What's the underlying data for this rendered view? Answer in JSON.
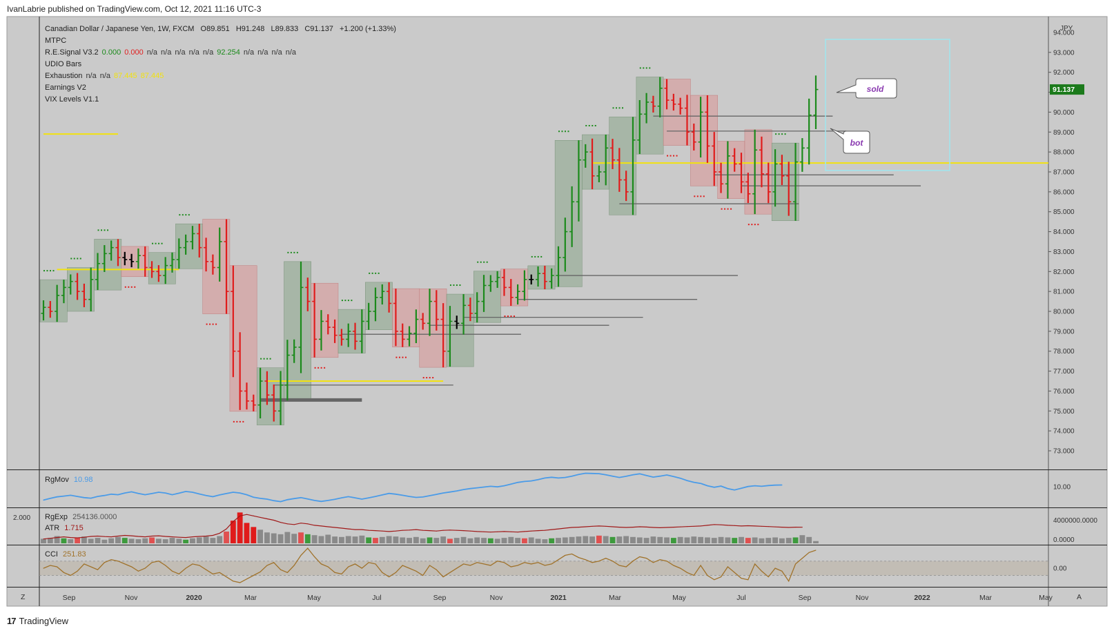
{
  "header": {
    "published": "IvanLabrie published on TradingView.com, Oct 12, 2021 11:16 UTC-3"
  },
  "footer": {
    "brand": "TradingView",
    "logo_glyph": "17"
  },
  "legend": {
    "symbol": "Canadian Dollar / Japanese Yen, 1W, FXCM",
    "ohlc": [
      {
        "label": "O",
        "value": "89.851"
      },
      {
        "label": "H",
        "value": "91.248"
      },
      {
        "label": "L",
        "value": "89.833"
      },
      {
        "label": "C",
        "value": "91.137"
      }
    ],
    "change": "+1.200 (+1.33%)",
    "indicators": [
      {
        "name": "MTPC",
        "values": []
      },
      {
        "name": "R.E.Signal V3.2",
        "values": [
          {
            "text": "0.000",
            "color": "#1b8a1b"
          },
          {
            "text": "0.000",
            "color": "#e02020"
          },
          {
            "text": "n/a",
            "color": "#333333"
          },
          {
            "text": "n/a",
            "color": "#333333"
          },
          {
            "text": "n/a",
            "color": "#333333"
          },
          {
            "text": "n/a",
            "color": "#333333"
          },
          {
            "text": "n/a",
            "color": "#333333"
          },
          {
            "text": "92.254",
            "color": "#1b8a1b"
          },
          {
            "text": "n/a",
            "color": "#333333"
          },
          {
            "text": "n/a",
            "color": "#333333"
          },
          {
            "text": "n/a",
            "color": "#333333"
          },
          {
            "text": "n/a",
            "color": "#333333"
          }
        ]
      },
      {
        "name": "UDIO Bars",
        "values": []
      },
      {
        "name": "Exhaustion",
        "values": [
          {
            "text": "n/a",
            "color": "#333333"
          },
          {
            "text": "n/a",
            "color": "#333333"
          },
          {
            "text": "87.445",
            "color": "#f2e20f"
          },
          {
            "text": "87.445",
            "color": "#f2e20f"
          }
        ]
      },
      {
        "name": "Earnings V2",
        "values": []
      },
      {
        "name": "VIX Levels V1.1",
        "values": []
      }
    ]
  },
  "currency": "JPY",
  "last_price": "91.137",
  "annotations": {
    "sold": "sold",
    "bot": "bot"
  },
  "axis_buttons": {
    "left": "Z",
    "right": "A"
  },
  "pane_labels": {
    "rgmov": {
      "name": "RgMov",
      "value": "10.98"
    },
    "rgexp": {
      "name": "RgExp",
      "value": "254136.0000"
    },
    "atr": {
      "name": "ATR",
      "value": "1.715"
    },
    "cci": {
      "name": "CCI",
      "value": "251.83"
    },
    "left_scale": "2.000"
  },
  "colors": {
    "background": "#cacaca",
    "up": "#1b8a1b",
    "down": "#e01b1b",
    "neutral": "#000000",
    "green_box": "#8fa98f",
    "red_box": "#d99a9a",
    "yellow": "#f2e20f",
    "cyan_box": "#9fe6ee",
    "rgmov_line": "#4a9be8",
    "rgexp_line": "#a01818",
    "cci_line": "#a0722a",
    "price_label_bg": "#1b7a1b"
  },
  "chart_data": [
    {
      "type": "candlestick",
      "title": "Canadian Dollar / Japanese Yen, 1W, FXCM",
      "ylabel": "JPY",
      "ylim": [
        73,
        94
      ],
      "y_ticks": [
        "94.000",
        "93.000",
        "92.000",
        "91.000",
        "90.000",
        "89.000",
        "88.000",
        "87.000",
        "86.000",
        "85.000",
        "84.000",
        "83.000",
        "82.000",
        "81.000",
        "80.000",
        "79.000",
        "78.000",
        "77.000",
        "76.000",
        "75.000",
        "74.000",
        "73.000"
      ],
      "x_ticks": [
        "Sep",
        "Nov",
        "2020",
        "Mar",
        "May",
        "Jul",
        "Sep",
        "Nov",
        "2021",
        "Mar",
        "May",
        "Jul",
        "Sep",
        "Nov",
        "2022",
        "Mar",
        "May"
      ],
      "closes": [
        80.2,
        80.0,
        80.8,
        81.2,
        81.5,
        81.0,
        80.6,
        81.6,
        82.4,
        82.9,
        83.2,
        82.7,
        82.6,
        82.5,
        82.8,
        82.2,
        82.0,
        81.8,
        82.3,
        82.6,
        83.2,
        83.5,
        83.9,
        83.2,
        82.5,
        82.2,
        83.5,
        81.0,
        78.0,
        76.0,
        75.5,
        75.3,
        76.5,
        75.8,
        75.0,
        76.3,
        77.8,
        78.2,
        81.2,
        80.5,
        78.6,
        79.5,
        79.2,
        78.8,
        78.6,
        79.0,
        78.5,
        79.5,
        80.0,
        80.7,
        81.0,
        80.4,
        79.0,
        78.6,
        78.9,
        79.6,
        79.4,
        80.5,
        79.6,
        78.0,
        79.5,
        79.4,
        80.3,
        79.9,
        80.5,
        81.3,
        81.5,
        81.7,
        81.2,
        80.7,
        81.0,
        81.6,
        81.6,
        81.9,
        81.5,
        81.8,
        82.7,
        84.0,
        85.5,
        87.6,
        88.0,
        86.8,
        87.0,
        88.2,
        87.6,
        86.6,
        86.0,
        88.6,
        89.9,
        90.5,
        90.3,
        91.2,
        90.6,
        90.4,
        90.2,
        89.0,
        88.5,
        90.0,
        88.3,
        87.0,
        86.4,
        87.8,
        87.4,
        86.5,
        85.9,
        88.1,
        86.9,
        86.0,
        87.4,
        86.8,
        85.5,
        87.5,
        88.2,
        89.85,
        91.137
      ],
      "last": 91.137,
      "levels": [
        {
          "price": 87.445,
          "from_index": 81,
          "label": "Exhaustion"
        },
        {
          "price": 86.85,
          "from_index": 99
        },
        {
          "price": 86.3,
          "from_index": 103
        },
        {
          "price": 89.8,
          "from_index": 90
        },
        {
          "price": 89.05,
          "from_index": 92
        },
        {
          "price": 85.4,
          "from_index": 85
        },
        {
          "price": 81.8,
          "from_index": 76
        },
        {
          "price": 80.6,
          "from_index": 70
        },
        {
          "price": 79.7,
          "from_index": 62
        },
        {
          "price": 79.3,
          "from_index": 57
        },
        {
          "price": 78.85,
          "from_index": 44
        },
        {
          "price": 76.3,
          "from_index": 34
        },
        {
          "price": 75.55,
          "from_index": 32
        },
        {
          "price": 82.1,
          "from_index": 2
        },
        {
          "price": 88.9,
          "from_index": 0
        },
        {
          "price": 76.5,
          "from_index": 33
        }
      ]
    },
    {
      "type": "line",
      "title": "RgMov",
      "last": 10.98,
      "y_ticks": [
        "10.00"
      ],
      "values": [
        3.1,
        4.0,
        4.8,
        5.2,
        5.6,
        5.0,
        4.4,
        4.1,
        5.0,
        5.5,
        6.2,
        5.9,
        6.8,
        7.4,
        6.6,
        5.9,
        6.5,
        7.2,
        6.8,
        5.9,
        6.7,
        7.6,
        7.2,
        6.3,
        5.5,
        4.9,
        5.8,
        6.5,
        7.2,
        6.8,
        5.9,
        4.6,
        4.0,
        3.6,
        2.8,
        2.3,
        3.3,
        3.9,
        4.4,
        3.7,
        2.9,
        2.4,
        2.9,
        3.5,
        4.3,
        4.9,
        4.3,
        3.6,
        4.3,
        5.0,
        5.8,
        6.6,
        6.2,
        5.6,
        5.0,
        4.5,
        4.7,
        5.4,
        6.1,
        6.8,
        7.3,
        7.9,
        8.6,
        9.1,
        9.5,
        9.9,
        10.3,
        10.0,
        10.6,
        11.4,
        12.3,
        12.8,
        13.1,
        13.8,
        14.6,
        15.0,
        14.6,
        14.9,
        15.6,
        16.5,
        17.1,
        17.0,
        16.9,
        16.3,
        15.6,
        14.9,
        15.5,
        16.3,
        16.8,
        15.9,
        15.1,
        15.6,
        16.2,
        15.4,
        14.5,
        13.3,
        12.4,
        11.8,
        10.6,
        9.8,
        10.4,
        9.1,
        8.4,
        9.3,
        10.2,
        10.6,
        10.3,
        10.7,
        10.9,
        10.98
      ]
    },
    {
      "type": "bar",
      "title": "RgExp / ATR",
      "rgexp_last": 254136.0,
      "atr_last": 1.715,
      "y_ticks": [
        "4000000.0000",
        "0.0000"
      ],
      "atr": [
        0.9,
        0.95,
        1.0,
        1.05,
        1.0,
        0.98,
        1.02,
        1.08,
        1.1,
        1.07,
        1.05,
        1.1,
        1.15,
        1.12,
        1.08,
        1.05,
        1.1,
        1.12,
        1.08,
        1.05,
        1.02,
        1.0,
        1.05,
        1.08,
        1.1,
        1.15,
        1.3,
        1.6,
        2.1,
        2.5,
        2.6,
        2.5,
        2.4,
        2.3,
        2.2,
        2.05,
        1.95,
        1.9,
        2.0,
        1.95,
        1.85,
        1.8,
        1.75,
        1.7,
        1.65,
        1.6,
        1.55,
        1.55,
        1.5,
        1.48,
        1.45,
        1.42,
        1.45,
        1.5,
        1.52,
        1.55,
        1.5,
        1.48,
        1.45,
        1.5,
        1.52,
        1.5,
        1.48,
        1.45,
        1.42,
        1.4,
        1.38,
        1.4,
        1.42,
        1.4,
        1.38,
        1.42,
        1.45,
        1.48,
        1.5,
        1.55,
        1.6,
        1.65,
        1.7,
        1.72,
        1.75,
        1.78,
        1.8,
        1.78,
        1.75,
        1.72,
        1.7,
        1.72,
        1.75,
        1.73,
        1.7,
        1.68,
        1.7,
        1.72,
        1.74,
        1.76,
        1.78,
        1.8,
        1.85,
        1.9,
        1.88,
        1.85,
        1.83,
        1.8,
        1.82,
        1.8,
        1.78,
        1.76,
        1.74,
        1.72,
        1.7,
        1.72,
        1.715
      ],
      "volume": [
        1.0,
        1.2,
        1.6,
        1.1,
        0.9,
        1.3,
        1.5,
        1.0,
        1.2,
        0.8,
        1.1,
        1.4,
        1.2,
        1.0,
        0.9,
        1.1,
        1.3,
        1.0,
        0.9,
        1.2,
        1.0,
        0.8,
        1.1,
        1.3,
        1.5,
        1.2,
        1.6,
        2.6,
        5.0,
        6.8,
        4.5,
        3.6,
        3.0,
        2.4,
        2.2,
        2.0,
        2.5,
        2.1,
        2.4,
        2.0,
        1.8,
        1.6,
        1.9,
        1.5,
        1.4,
        1.6,
        1.5,
        1.7,
        1.3,
        1.2,
        1.4,
        1.6,
        1.5,
        1.3,
        1.2,
        1.4,
        1.1,
        1.3,
        1.2,
        1.5,
        1.0,
        1.2,
        1.4,
        1.1,
        1.3,
        1.2,
        1.1,
        1.0,
        1.2,
        1.4,
        1.2,
        1.1,
        1.3,
        1.0,
        0.9,
        1.1,
        1.2,
        1.3,
        1.4,
        1.5,
        1.6,
        1.5,
        1.7,
        1.6,
        1.4,
        1.5,
        1.6,
        1.4,
        1.3,
        1.2,
        1.5,
        1.4,
        1.3,
        1.2,
        1.4,
        1.3,
        1.5,
        1.4,
        1.3,
        1.2,
        1.4,
        1.3,
        1.2,
        1.4,
        1.2,
        1.3,
        1.1,
        1.2,
        1.3,
        1.1,
        1.2,
        1.3,
        1.8,
        1.4,
        0.5
      ]
    },
    {
      "type": "line",
      "title": "CCI",
      "last": 251.83,
      "y_ticks": [
        "0.00"
      ],
      "band": [
        -100,
        100
      ],
      "values": [
        0,
        40,
        20,
        -60,
        -100,
        -40,
        60,
        20,
        -20,
        80,
        120,
        100,
        60,
        20,
        -40,
        0,
        80,
        100,
        40,
        -40,
        -80,
        0,
        60,
        40,
        -20,
        -80,
        -60,
        -120,
        -180,
        -200,
        -150,
        -100,
        -50,
        40,
        80,
        -20,
        -60,
        40,
        180,
        280,
        160,
        60,
        20,
        -60,
        -80,
        20,
        60,
        0,
        80,
        60,
        -60,
        -120,
        -60,
        40,
        0,
        -40,
        -100,
        40,
        -20,
        -120,
        -60,
        0,
        60,
        40,
        80,
        60,
        40,
        100,
        80,
        20,
        40,
        80,
        60,
        80,
        40,
        60,
        120,
        180,
        200,
        150,
        120,
        80,
        100,
        140,
        100,
        40,
        20,
        100,
        160,
        140,
        80,
        120,
        100,
        40,
        0,
        -60,
        -100,
        40,
        -100,
        -160,
        -120,
        20,
        -60,
        -140,
        -160,
        60,
        -40,
        -120,
        0,
        -40,
        -180,
        60,
        140,
        220,
        251.83
      ]
    }
  ]
}
